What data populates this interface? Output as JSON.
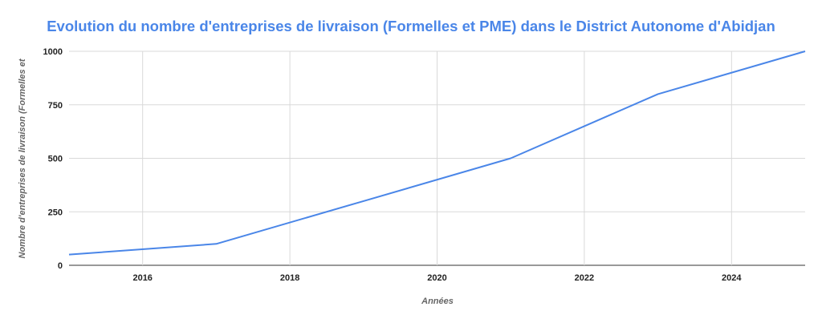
{
  "colors": {
    "title": "#4a86e8",
    "series_line": "#4a86e8",
    "gridline": "#d9d9d9",
    "baseline": "#333333"
  },
  "chart_data": {
    "type": "line",
    "title": "Evolution du nombre d'entreprises de livraison (Formelles et PME) dans le District Autonome d'Abidjan",
    "xlabel": "Années",
    "ylabel": "Nombre d'entreprises de livraison (Formelles et",
    "xlim": [
      2015,
      2025
    ],
    "ylim": [
      0,
      1000
    ],
    "x_ticks": [
      2016,
      2018,
      2020,
      2022,
      2024
    ],
    "x_tick_labels": [
      "2016",
      "2018",
      "2020",
      "2022",
      "2024"
    ],
    "y_ticks": [
      0,
      250,
      500,
      750,
      1000
    ],
    "y_tick_labels": [
      "0",
      "250",
      "500",
      "750",
      "1000"
    ],
    "grid": true,
    "legend": "none",
    "series": [
      {
        "x": [
          2015,
          2017,
          2019,
          2021,
          2023,
          2025
        ],
        "values": [
          50,
          100,
          300,
          500,
          800,
          1000
        ]
      }
    ]
  }
}
